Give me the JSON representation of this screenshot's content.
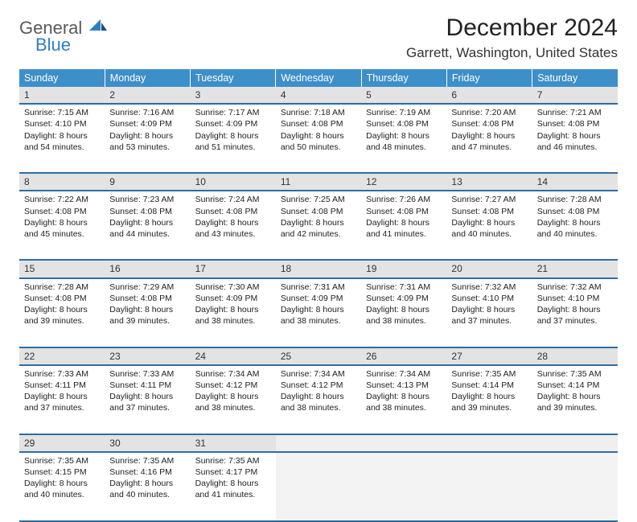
{
  "brand": {
    "general": "General",
    "blue": "Blue"
  },
  "title": "December 2024",
  "location": "Garrett, Washington, United States",
  "colors": {
    "header_bg": "#3d8fc9",
    "header_text": "#ffffff",
    "daynum_bg": "#e3e3e3",
    "row_divider": "#2d6ea3",
    "logo_gray": "#5a5a5a",
    "logo_blue": "#2d7fc1"
  },
  "day_headers": [
    "Sunday",
    "Monday",
    "Tuesday",
    "Wednesday",
    "Thursday",
    "Friday",
    "Saturday"
  ],
  "weeks": [
    [
      {
        "num": "1",
        "sunrise": "7:15 AM",
        "sunset": "4:10 PM",
        "dl": "8 hours and 54 minutes."
      },
      {
        "num": "2",
        "sunrise": "7:16 AM",
        "sunset": "4:09 PM",
        "dl": "8 hours and 53 minutes."
      },
      {
        "num": "3",
        "sunrise": "7:17 AM",
        "sunset": "4:09 PM",
        "dl": "8 hours and 51 minutes."
      },
      {
        "num": "4",
        "sunrise": "7:18 AM",
        "sunset": "4:08 PM",
        "dl": "8 hours and 50 minutes."
      },
      {
        "num": "5",
        "sunrise": "7:19 AM",
        "sunset": "4:08 PM",
        "dl": "8 hours and 48 minutes."
      },
      {
        "num": "6",
        "sunrise": "7:20 AM",
        "sunset": "4:08 PM",
        "dl": "8 hours and 47 minutes."
      },
      {
        "num": "7",
        "sunrise": "7:21 AM",
        "sunset": "4:08 PM",
        "dl": "8 hours and 46 minutes."
      }
    ],
    [
      {
        "num": "8",
        "sunrise": "7:22 AM",
        "sunset": "4:08 PM",
        "dl": "8 hours and 45 minutes."
      },
      {
        "num": "9",
        "sunrise": "7:23 AM",
        "sunset": "4:08 PM",
        "dl": "8 hours and 44 minutes."
      },
      {
        "num": "10",
        "sunrise": "7:24 AM",
        "sunset": "4:08 PM",
        "dl": "8 hours and 43 minutes."
      },
      {
        "num": "11",
        "sunrise": "7:25 AM",
        "sunset": "4:08 PM",
        "dl": "8 hours and 42 minutes."
      },
      {
        "num": "12",
        "sunrise": "7:26 AM",
        "sunset": "4:08 PM",
        "dl": "8 hours and 41 minutes."
      },
      {
        "num": "13",
        "sunrise": "7:27 AM",
        "sunset": "4:08 PM",
        "dl": "8 hours and 40 minutes."
      },
      {
        "num": "14",
        "sunrise": "7:28 AM",
        "sunset": "4:08 PM",
        "dl": "8 hours and 40 minutes."
      }
    ],
    [
      {
        "num": "15",
        "sunrise": "7:28 AM",
        "sunset": "4:08 PM",
        "dl": "8 hours and 39 minutes."
      },
      {
        "num": "16",
        "sunrise": "7:29 AM",
        "sunset": "4:08 PM",
        "dl": "8 hours and 39 minutes."
      },
      {
        "num": "17",
        "sunrise": "7:30 AM",
        "sunset": "4:09 PM",
        "dl": "8 hours and 38 minutes."
      },
      {
        "num": "18",
        "sunrise": "7:31 AM",
        "sunset": "4:09 PM",
        "dl": "8 hours and 38 minutes."
      },
      {
        "num": "19",
        "sunrise": "7:31 AM",
        "sunset": "4:09 PM",
        "dl": "8 hours and 38 minutes."
      },
      {
        "num": "20",
        "sunrise": "7:32 AM",
        "sunset": "4:10 PM",
        "dl": "8 hours and 37 minutes."
      },
      {
        "num": "21",
        "sunrise": "7:32 AM",
        "sunset": "4:10 PM",
        "dl": "8 hours and 37 minutes."
      }
    ],
    [
      {
        "num": "22",
        "sunrise": "7:33 AM",
        "sunset": "4:11 PM",
        "dl": "8 hours and 37 minutes."
      },
      {
        "num": "23",
        "sunrise": "7:33 AM",
        "sunset": "4:11 PM",
        "dl": "8 hours and 37 minutes."
      },
      {
        "num": "24",
        "sunrise": "7:34 AM",
        "sunset": "4:12 PM",
        "dl": "8 hours and 38 minutes."
      },
      {
        "num": "25",
        "sunrise": "7:34 AM",
        "sunset": "4:12 PM",
        "dl": "8 hours and 38 minutes."
      },
      {
        "num": "26",
        "sunrise": "7:34 AM",
        "sunset": "4:13 PM",
        "dl": "8 hours and 38 minutes."
      },
      {
        "num": "27",
        "sunrise": "7:35 AM",
        "sunset": "4:14 PM",
        "dl": "8 hours and 39 minutes."
      },
      {
        "num": "28",
        "sunrise": "7:35 AM",
        "sunset": "4:14 PM",
        "dl": "8 hours and 39 minutes."
      }
    ],
    [
      {
        "num": "29",
        "sunrise": "7:35 AM",
        "sunset": "4:15 PM",
        "dl": "8 hours and 40 minutes."
      },
      {
        "num": "30",
        "sunrise": "7:35 AM",
        "sunset": "4:16 PM",
        "dl": "8 hours and 40 minutes."
      },
      {
        "num": "31",
        "sunrise": "7:35 AM",
        "sunset": "4:17 PM",
        "dl": "8 hours and 41 minutes."
      },
      null,
      null,
      null,
      null
    ]
  ],
  "labels": {
    "sunrise": "Sunrise:",
    "sunset": "Sunset:",
    "daylight": "Daylight:"
  }
}
